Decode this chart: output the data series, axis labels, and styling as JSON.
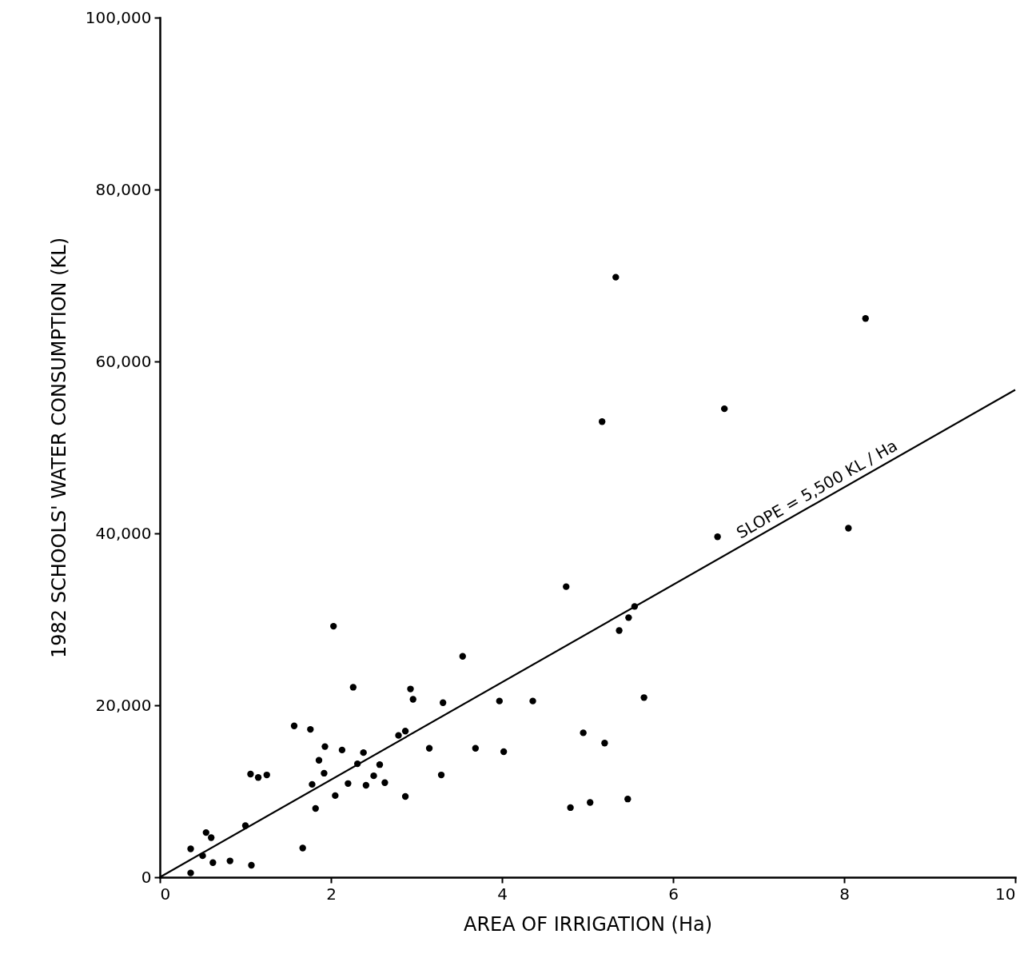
{
  "chart_data": {
    "type": "scatter",
    "xlabel": "AREA OF IRRIGATION (Ha)",
    "ylabel": "1982 SCHOOLS' WATER CONSUMPTION (KL)",
    "xlim": [
      0,
      10
    ],
    "xticks": [
      0,
      2,
      4,
      6,
      8,
      10
    ],
    "ylim": [
      0,
      100000
    ],
    "yticks": [
      0,
      {
        "value": 20000,
        "label": "20,000"
      },
      {
        "value": 40000,
        "label": "40,000"
      },
      {
        "value": 60000,
        "label": "60,000"
      },
      {
        "value": 80000,
        "label": "80,000"
      },
      {
        "value": 100000,
        "label": "100,000"
      }
    ],
    "grid": false,
    "series": [
      {
        "color": "#000000",
        "marker": "circle",
        "x": [
          0.36,
          0.36,
          0.5,
          0.54,
          0.6,
          0.62,
          0.82,
          1.0,
          1.07,
          1.06,
          1.15,
          1.25,
          1.57,
          1.67,
          1.76,
          1.78,
          1.82,
          1.86,
          1.92,
          1.93,
          2.05,
          2.03,
          2.13,
          2.2,
          2.26,
          2.31,
          2.38,
          2.41,
          2.5,
          2.57,
          2.63,
          2.79,
          2.87,
          2.87,
          2.93,
          2.96,
          3.15,
          3.29,
          3.31,
          3.54,
          3.69,
          3.97,
          4.02,
          4.36,
          4.75,
          4.8,
          4.95,
          5.03,
          5.17,
          5.2,
          5.33,
          5.37,
          5.48,
          5.47,
          5.55,
          5.66,
          6.52,
          8.05,
          8.25,
          6.6
        ],
        "values": [
          500,
          3300,
          2500,
          5200,
          4600,
          1700,
          1900,
          6000,
          1400,
          12000,
          11600,
          11900,
          17600,
          3400,
          17200,
          10800,
          8000,
          13600,
          12100,
          15200,
          9500,
          29200,
          14800,
          10900,
          22100,
          13200,
          14500,
          10700,
          11800,
          13100,
          11000,
          16500,
          17000,
          9400,
          21900,
          20700,
          15000,
          11900,
          20300,
          25700,
          15000,
          20500,
          14600,
          20500,
          33800,
          8100,
          16800,
          8700,
          53000,
          15600,
          69800,
          28700,
          30200,
          9100,
          31500,
          20900,
          39600,
          40600,
          65000,
          54500
        ]
      },
      {
        "type": "line",
        "color": "#000000",
        "x": [
          0,
          10
        ],
        "values": [
          0,
          56700
        ]
      }
    ],
    "annotations": [
      "SLOPE = 5,500 KL / Ha"
    ]
  }
}
